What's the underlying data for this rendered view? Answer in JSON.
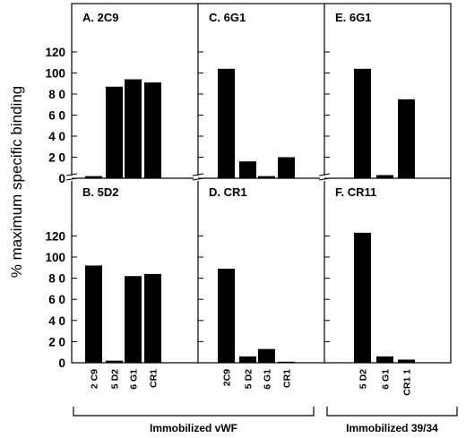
{
  "ylabel": "% maximum specific binding",
  "yticks": [
    "0",
    "2 0",
    "4 0",
    "6 0",
    "8 0",
    "100",
    "120"
  ],
  "groups": [
    {
      "label": "Immobilized vWF"
    },
    {
      "label": "Immobilized  39/34"
    }
  ],
  "chart_data": [
    {
      "type": "bar",
      "title": "A.  2C9",
      "categories": [
        "2 C9",
        "5 D2",
        "6 G1",
        "CR1"
      ],
      "values": [
        2,
        87,
        94,
        91
      ],
      "ylim": [
        0,
        120
      ]
    },
    {
      "type": "bar",
      "title": "C.  6G1",
      "categories": [
        "2C9",
        "5 D2",
        "6 G1",
        "CR1"
      ],
      "values": [
        104,
        16,
        2,
        20
      ],
      "ylim": [
        0,
        120
      ]
    },
    {
      "type": "bar",
      "title": "E.  6G1",
      "categories": [
        "5 D2",
        "6 G1",
        "CR1 1"
      ],
      "values": [
        104,
        3,
        75
      ],
      "ylim": [
        0,
        120
      ]
    },
    {
      "type": "bar",
      "title": "B.  5D2",
      "categories": [
        "2 C9",
        "5 D2",
        "6 G1",
        "CR1"
      ],
      "values": [
        92,
        2,
        82,
        84
      ],
      "ylim": [
        0,
        120
      ]
    },
    {
      "type": "bar",
      "title": "D.  CR1",
      "categories": [
        "2C9",
        "5 D2",
        "6 G1",
        "CR1"
      ],
      "values": [
        89,
        6,
        13,
        1
      ],
      "ylim": [
        0,
        120
      ]
    },
    {
      "type": "bar",
      "title": "F.  CR11",
      "categories": [
        "5 D2",
        "6 G1",
        "CR1 1"
      ],
      "values": [
        123,
        6,
        3
      ],
      "ylim": [
        0,
        120
      ]
    }
  ]
}
